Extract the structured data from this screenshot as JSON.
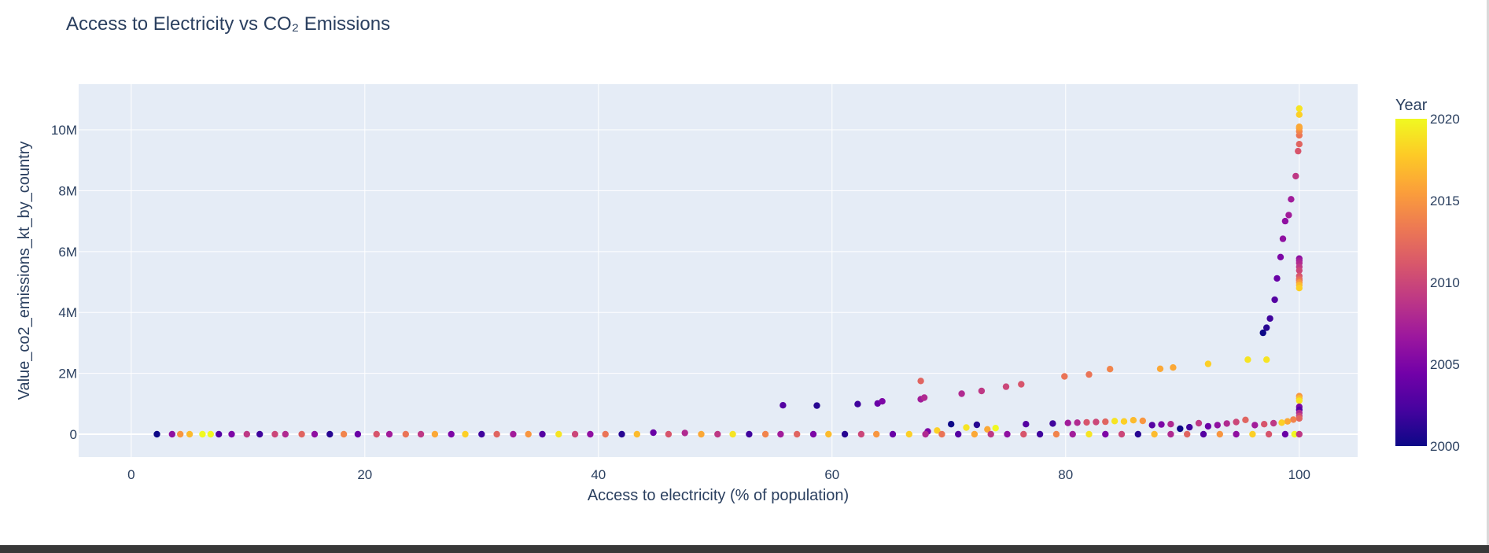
{
  "chart_data": {
    "type": "scatter",
    "title": "Access to Electricity vs CO₂ Emissions",
    "xlabel": "Access to electricity (% of population)",
    "ylabel": "Value_co2_emissions_kt_by_country",
    "xlim": [
      -4.5,
      105
    ],
    "ylim": [
      -750000,
      11500000
    ],
    "xticks": [
      0,
      20,
      40,
      60,
      80,
      100
    ],
    "xtick_labels": [
      "0",
      "20",
      "40",
      "60",
      "80",
      "100"
    ],
    "yticks": [
      0,
      2000000,
      4000000,
      6000000,
      8000000,
      10000000
    ],
    "ytick_labels": [
      "0",
      "2M",
      "4M",
      "6M",
      "8M",
      "10M"
    ],
    "grid": true,
    "colorbar": {
      "title": "Year",
      "range": [
        2000,
        2020
      ],
      "ticks": [
        2000,
        2005,
        2010,
        2015,
        2020
      ],
      "tick_labels": [
        "2000",
        "2005",
        "2010",
        "2015",
        "2020"
      ],
      "colorscale": [
        "#0d0887",
        "#46039f",
        "#7201a8",
        "#9c179e",
        "#bd3786",
        "#d8576b",
        "#ed7953",
        "#fb9f3a",
        "#fdca26",
        "#f0f921"
      ]
    },
    "points": [
      [
        55.8,
        950000,
        2003
      ],
      [
        58.7,
        940000,
        2001
      ],
      [
        62.2,
        990000,
        2002
      ],
      [
        63.9,
        1010000,
        2004
      ],
      [
        64.3,
        1080000,
        2005
      ],
      [
        67.6,
        1150000,
        2007
      ],
      [
        67.9,
        1200000,
        2008
      ],
      [
        67.6,
        1750000,
        2012
      ],
      [
        71.1,
        1330000,
        2008
      ],
      [
        72.8,
        1420000,
        2009
      ],
      [
        74.9,
        1560000,
        2010
      ],
      [
        76.2,
        1640000,
        2011
      ],
      [
        79.9,
        1900000,
        2013
      ],
      [
        82.0,
        1960000,
        2013
      ],
      [
        83.8,
        2140000,
        2014
      ],
      [
        88.1,
        2150000,
        2016
      ],
      [
        89.2,
        2190000,
        2016
      ],
      [
        92.2,
        2310000,
        2018
      ],
      [
        95.6,
        2450000,
        2019
      ],
      [
        97.2,
        2450000,
        2019
      ],
      [
        96.9,
        3330000,
        2000
      ],
      [
        97.2,
        3500000,
        2001
      ],
      [
        97.5,
        3800000,
        2002
      ],
      [
        97.9,
        4420000,
        2003
      ],
      [
        98.1,
        5120000,
        2004
      ],
      [
        98.4,
        5820000,
        2005
      ],
      [
        98.6,
        6420000,
        2006
      ],
      [
        98.8,
        7000000,
        2006
      ],
      [
        99.1,
        7200000,
        2007
      ],
      [
        99.3,
        7720000,
        2007
      ],
      [
        99.7,
        8480000,
        2009
      ],
      [
        99.9,
        9300000,
        2011
      ],
      [
        100,
        9530000,
        2012
      ],
      [
        100,
        9820000,
        2013
      ],
      [
        100,
        9950000,
        2014
      ],
      [
        100,
        10050000,
        2015
      ],
      [
        100,
        10100000,
        2016
      ],
      [
        100,
        10500000,
        2018
      ],
      [
        100,
        10700000,
        2019
      ],
      [
        100,
        5770000,
        2006
      ],
      [
        100,
        5700000,
        2007
      ],
      [
        100,
        5620000,
        2008
      ],
      [
        100,
        5500000,
        2009
      ],
      [
        100,
        5380000,
        2010
      ],
      [
        100,
        5200000,
        2011
      ],
      [
        100,
        5100000,
        2012
      ],
      [
        100,
        5050000,
        2013
      ],
      [
        100,
        4980000,
        2015
      ],
      [
        100,
        4900000,
        2017
      ],
      [
        100,
        4800000,
        2018
      ],
      [
        100,
        1250000,
        2015
      ],
      [
        100,
        1180000,
        2017
      ],
      [
        100,
        1100000,
        2019
      ],
      [
        100,
        900000,
        2005
      ],
      [
        100,
        800000,
        2003
      ],
      [
        100,
        700000,
        2008
      ],
      [
        100,
        600000,
        2010
      ],
      [
        100,
        520000,
        2012
      ],
      [
        99.5,
        480000,
        2014
      ],
      [
        99.0,
        420000,
        2016
      ],
      [
        98.5,
        380000,
        2018
      ],
      [
        97.8,
        360000,
        2009
      ],
      [
        97.0,
        330000,
        2011
      ],
      [
        96.2,
        300000,
        2007
      ],
      [
        95.4,
        470000,
        2012
      ],
      [
        94.6,
        400000,
        2010
      ],
      [
        93.8,
        350000,
        2008
      ],
      [
        93.0,
        300000,
        2006
      ],
      [
        92.2,
        260000,
        2004
      ],
      [
        91.4,
        360000,
        2009
      ],
      [
        90.6,
        230000,
        2002
      ],
      [
        89.8,
        180000,
        2000
      ],
      [
        89.0,
        330000,
        2008
      ],
      [
        88.2,
        320000,
        2005
      ],
      [
        87.4,
        300000,
        2003
      ],
      [
        86.6,
        440000,
        2015
      ],
      [
        85.8,
        460000,
        2017
      ],
      [
        85.0,
        420000,
        2018
      ],
      [
        84.2,
        430000,
        2019
      ],
      [
        83.4,
        410000,
        2012
      ],
      [
        82.6,
        400000,
        2010
      ],
      [
        81.8,
        390000,
        2011
      ],
      [
        81.0,
        380000,
        2008
      ],
      [
        80.2,
        370000,
        2007
      ],
      [
        78.9,
        350000,
        2002
      ],
      [
        76.6,
        330000,
        2003
      ],
      [
        73.3,
        160000,
        2016
      ],
      [
        72.4,
        310000,
        2001
      ],
      [
        70.2,
        330000,
        2000
      ],
      [
        71.5,
        220000,
        2019
      ],
      [
        74.0,
        200000,
        2020
      ],
      [
        69.0,
        120000,
        2018
      ],
      [
        68.2,
        90000,
        2005
      ],
      [
        2.2,
        0,
        2000
      ],
      [
        3.5,
        0,
        2006
      ],
      [
        4.2,
        0,
        2015
      ],
      [
        5.0,
        0,
        2017
      ],
      [
        6.1,
        0,
        2020
      ],
      [
        6.8,
        0,
        2020
      ],
      [
        7.5,
        0,
        2003
      ],
      [
        8.6,
        0,
        2005
      ],
      [
        9.9,
        0,
        2009
      ],
      [
        11.0,
        0,
        2002
      ],
      [
        12.3,
        0,
        2010
      ],
      [
        13.2,
        0,
        2008
      ],
      [
        14.6,
        0,
        2012
      ],
      [
        15.7,
        0,
        2006
      ],
      [
        17.0,
        0,
        2001
      ],
      [
        18.2,
        0,
        2014
      ],
      [
        19.4,
        0,
        2004
      ],
      [
        21.0,
        0,
        2011
      ],
      [
        22.1,
        0,
        2007
      ],
      [
        23.5,
        0,
        2013
      ],
      [
        24.8,
        0,
        2009
      ],
      [
        26.0,
        0,
        2016
      ],
      [
        27.4,
        0,
        2005
      ],
      [
        28.6,
        0,
        2018
      ],
      [
        30.0,
        0,
        2002
      ],
      [
        31.3,
        0,
        2012
      ],
      [
        32.7,
        0,
        2007
      ],
      [
        34.0,
        0,
        2015
      ],
      [
        35.2,
        0,
        2003
      ],
      [
        36.6,
        0,
        2019
      ],
      [
        38.0,
        0,
        2010
      ],
      [
        39.3,
        0,
        2006
      ],
      [
        40.6,
        0,
        2013
      ],
      [
        42.0,
        0,
        2001
      ],
      [
        43.3,
        0,
        2017
      ],
      [
        44.7,
        50000,
        2004
      ],
      [
        46.0,
        0,
        2011
      ],
      [
        47.4,
        40000,
        2008
      ],
      [
        48.8,
        0,
        2016
      ],
      [
        50.2,
        0,
        2009
      ],
      [
        51.5,
        0,
        2019
      ],
      [
        52.9,
        0,
        2002
      ],
      [
        54.3,
        0,
        2014
      ],
      [
        55.6,
        0,
        2007
      ],
      [
        57.0,
        0,
        2012
      ],
      [
        58.4,
        0,
        2005
      ],
      [
        59.7,
        0,
        2017
      ],
      [
        61.1,
        0,
        2001
      ],
      [
        62.5,
        0,
        2010
      ],
      [
        63.8,
        0,
        2015
      ],
      [
        65.2,
        0,
        2004
      ],
      [
        66.6,
        0,
        2018
      ],
      [
        68.0,
        0,
        2008
      ],
      [
        69.4,
        0,
        2013
      ],
      [
        70.8,
        0,
        2003
      ],
      [
        72.2,
        0,
        2016
      ],
      [
        73.6,
        0,
        2009
      ],
      [
        75.0,
        0,
        2006
      ],
      [
        76.4,
        0,
        2011
      ],
      [
        77.8,
        0,
        2002
      ],
      [
        79.2,
        0,
        2014
      ],
      [
        80.6,
        0,
        2007
      ],
      [
        82.0,
        0,
        2019
      ],
      [
        83.4,
        0,
        2005
      ],
      [
        84.8,
        0,
        2010
      ],
      [
        86.2,
        0,
        2001
      ],
      [
        87.6,
        0,
        2017
      ],
      [
        89.0,
        0,
        2008
      ],
      [
        90.4,
        0,
        2012
      ],
      [
        91.8,
        0,
        2003
      ],
      [
        93.2,
        0,
        2015
      ],
      [
        94.6,
        0,
        2006
      ],
      [
        96.0,
        0,
        2018
      ],
      [
        97.4,
        0,
        2011
      ],
      [
        98.8,
        0,
        2004
      ],
      [
        99.6,
        0,
        2020
      ],
      [
        100,
        0,
        2009
      ]
    ]
  }
}
